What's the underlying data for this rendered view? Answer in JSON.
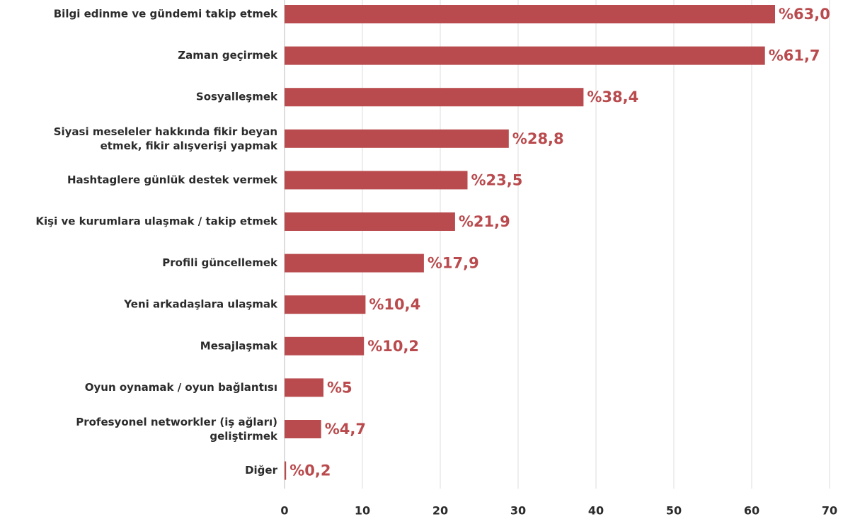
{
  "chart_data": {
    "type": "bar",
    "orientation": "horizontal",
    "categories": [
      "Bilgi edinme ve gündemi takip etmek",
      "Zaman geçirmek",
      "Sosyalleşmek",
      "Siyasi meseleler hakkında fikir beyan\netmek, fikir alışverişi yapmak",
      "Hashtaglere günlük destek vermek",
      "Kişi ve kurumlara ulaşmak / takip etmek",
      "Profili güncellemek",
      "Yeni arkadaşlara ulaşmak",
      "Mesajlaşmak",
      "Oyun oynamak / oyun bağlantısı",
      "Profesyonel networkler (iş ağları)\ngeliştirmek",
      "Diğer"
    ],
    "values": [
      63.0,
      61.7,
      38.4,
      28.8,
      23.5,
      21.9,
      17.9,
      10.4,
      10.2,
      5,
      4.7,
      0.2
    ],
    "value_labels": [
      "%63,0",
      "%61,7",
      "%38,4",
      "%28,8",
      "%23,5",
      "%21,9",
      "%17,9",
      "%10,4",
      "%10,2",
      "%5",
      "%4,7",
      "%0,2"
    ],
    "color": "#b94a4d",
    "xlim": [
      0,
      70
    ],
    "xticks": [
      0,
      10,
      20,
      30,
      40,
      50,
      60,
      70
    ],
    "grid": true
  }
}
